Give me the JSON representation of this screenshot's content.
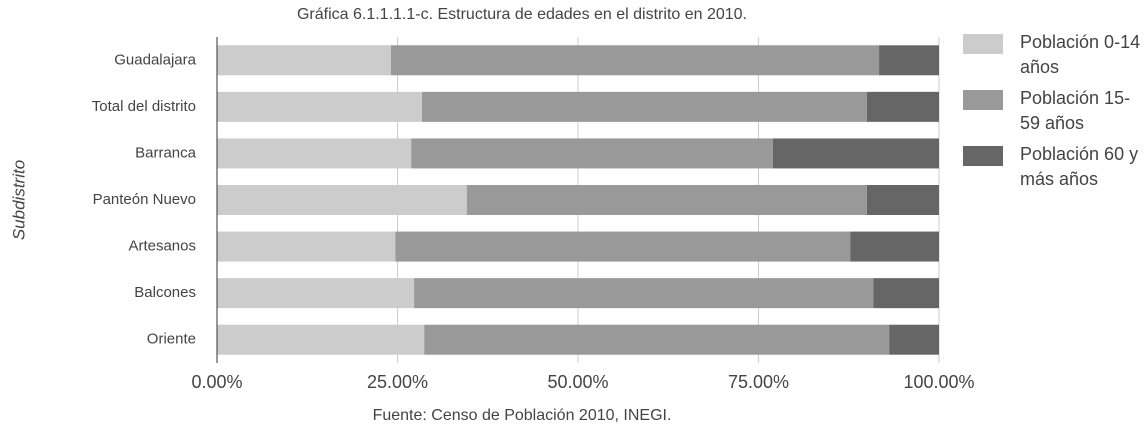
{
  "chart_data": {
    "type": "stacked_barh",
    "title": "Gráfica 6.1.1.1.1-c. Estructura de edades en el distrito en 2010.",
    "source": "Fuente: Censo de Población 2010, INEGI.",
    "y_label": "Subdistrito",
    "categories": [
      "Guadalajara",
      "Total del distrito",
      "Barranca",
      "Panteón Nuevo",
      "Artesanos",
      "Balcones",
      "Oriente"
    ],
    "series": [
      {
        "name": "Población 0-14 años",
        "color": "#cccccc",
        "values": [
          24.1,
          28.4,
          26.9,
          34.6,
          24.7,
          27.3,
          28.7
        ]
      },
      {
        "name": "Población 15-59 años",
        "color": "#999999",
        "values": [
          67.6,
          61.6,
          50.1,
          55.4,
          63.0,
          63.6,
          64.4
        ]
      },
      {
        "name": "Población 60 y más años",
        "color": "#666666",
        "values": [
          8.3,
          10.0,
          23.0,
          10.0,
          12.3,
          9.1,
          6.9
        ]
      }
    ],
    "xlim": [
      0,
      100
    ],
    "xticks": [
      {
        "value": 0,
        "label": "0.00%"
      },
      {
        "value": 25,
        "label": "25.00%"
      },
      {
        "value": 50,
        "label": "50.00%"
      },
      {
        "value": 75,
        "label": "75.00%"
      },
      {
        "value": 100,
        "label": "100.00%"
      }
    ],
    "grid": true
  }
}
